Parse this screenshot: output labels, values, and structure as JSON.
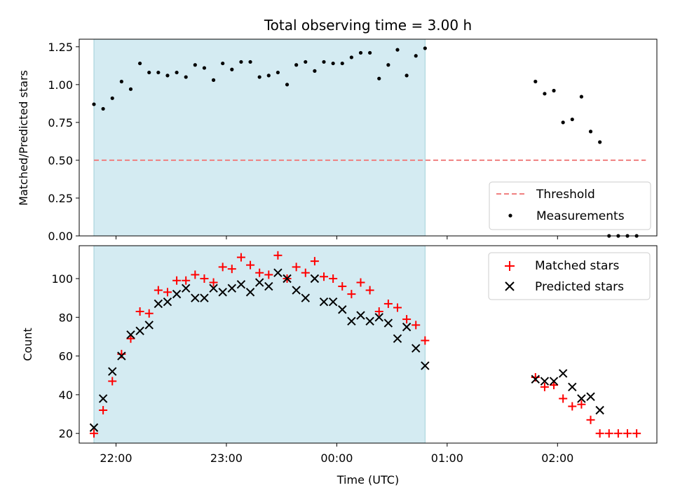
{
  "chart_data": [
    {
      "type": "scatter",
      "title": "Total observing time = 3.00 h",
      "ylabel": "Matched/Predicted stars",
      "xlim": [
        "21:40",
        "02:54"
      ],
      "ylim": [
        0,
        1.3
      ],
      "yticks": [
        "0.00",
        "0.25",
        "0.50",
        "0.75",
        "1.00",
        "1.25"
      ],
      "shaded_region": [
        "21:48",
        "00:48"
      ],
      "grid": false,
      "legend_position": "lower-right",
      "series": [
        {
          "name": "Threshold",
          "style": "dashed-line",
          "color": "#f08080",
          "x": [
            "21:48",
            "02:48"
          ],
          "y": [
            0.5,
            0.5
          ]
        },
        {
          "name": "Measurements",
          "style": "dot",
          "color": "#000000",
          "x": [
            "21:48",
            "21:53",
            "21:58",
            "22:03",
            "22:08",
            "22:13",
            "22:18",
            "22:23",
            "22:28",
            "22:33",
            "22:38",
            "22:43",
            "22:48",
            "22:53",
            "22:58",
            "23:03",
            "23:08",
            "23:13",
            "23:18",
            "23:23",
            "23:28",
            "23:33",
            "23:38",
            "23:43",
            "23:48",
            "23:53",
            "23:58",
            "00:03",
            "00:08",
            "00:13",
            "00:18",
            "00:23",
            "00:28",
            "00:33",
            "00:38",
            "00:43",
            "00:48",
            "01:48",
            "01:53",
            "01:58",
            "02:03",
            "02:08",
            "02:13",
            "02:18",
            "02:23",
            "02:28",
            "02:33",
            "02:38",
            "02:43"
          ],
          "y": [
            0.87,
            0.84,
            0.91,
            1.02,
            0.97,
            1.14,
            1.08,
            1.08,
            1.06,
            1.08,
            1.05,
            1.13,
            1.11,
            1.03,
            1.14,
            1.1,
            1.15,
            1.15,
            1.05,
            1.06,
            1.08,
            1.0,
            1.13,
            1.15,
            1.09,
            1.15,
            1.14,
            1.14,
            1.18,
            1.21,
            1.21,
            1.04,
            1.13,
            1.23,
            1.06,
            1.19,
            1.24,
            1.02,
            0.94,
            0.96,
            0.75,
            0.77,
            0.92,
            0.69,
            0.62,
            0.0,
            0.0,
            0.0,
            0.0
          ]
        }
      ]
    },
    {
      "type": "scatter",
      "xlabel": "Time (UTC)",
      "ylabel": "Count",
      "xlim": [
        "21:40",
        "02:54"
      ],
      "ylim": [
        15,
        117
      ],
      "yticks": [
        "20",
        "40",
        "60",
        "80",
        "100"
      ],
      "xticks": [
        "22:00",
        "23:00",
        "00:00",
        "01:00",
        "02:00"
      ],
      "shaded_region": [
        "21:48",
        "00:48"
      ],
      "grid": false,
      "legend_position": "upper-right",
      "series": [
        {
          "name": "Matched stars",
          "style": "plus",
          "color": "#ff0000",
          "x": [
            "21:48",
            "21:53",
            "21:58",
            "22:03",
            "22:08",
            "22:13",
            "22:18",
            "22:23",
            "22:28",
            "22:33",
            "22:38",
            "22:43",
            "22:48",
            "22:53",
            "22:58",
            "23:03",
            "23:08",
            "23:13",
            "23:18",
            "23:23",
            "23:28",
            "23:33",
            "23:38",
            "23:43",
            "23:48",
            "23:53",
            "23:58",
            "00:03",
            "00:08",
            "00:13",
            "00:18",
            "00:23",
            "00:28",
            "00:33",
            "00:38",
            "00:43",
            "00:48",
            "01:48",
            "01:53",
            "01:58",
            "02:03",
            "02:08",
            "02:13",
            "02:18",
            "02:23",
            "02:28",
            "02:33",
            "02:38",
            "02:43"
          ],
          "y": [
            20,
            32,
            47,
            61,
            69,
            83,
            82,
            94,
            93,
            99,
            99,
            102,
            100,
            98,
            106,
            105,
            111,
            107,
            103,
            102,
            112,
            100,
            106,
            103,
            109,
            101,
            100,
            96,
            92,
            98,
            94,
            83,
            87,
            85,
            79,
            76,
            68,
            49,
            44,
            45,
            38,
            34,
            35,
            27,
            20,
            20,
            20,
            20,
            20
          ]
        },
        {
          "name": "Predicted stars",
          "style": "cross",
          "color": "#000000",
          "x": [
            "21:48",
            "21:53",
            "21:58",
            "22:03",
            "22:08",
            "22:13",
            "22:18",
            "22:23",
            "22:28",
            "22:33",
            "22:38",
            "22:43",
            "22:48",
            "22:53",
            "22:58",
            "23:03",
            "23:08",
            "23:13",
            "23:18",
            "23:23",
            "23:28",
            "23:33",
            "23:38",
            "23:43",
            "23:48",
            "23:53",
            "23:58",
            "00:03",
            "00:08",
            "00:13",
            "00:18",
            "00:23",
            "00:28",
            "00:33",
            "00:38",
            "00:43",
            "00:48",
            "01:48",
            "01:53",
            "01:58",
            "02:03",
            "02:08",
            "02:13",
            "02:18",
            "02:23"
          ],
          "y": [
            23,
            38,
            52,
            60,
            71,
            73,
            76,
            87,
            88,
            92,
            95,
            90,
            90,
            95,
            93,
            95,
            97,
            93,
            98,
            96,
            103,
            100,
            94,
            90,
            100,
            88,
            88,
            84,
            78,
            81,
            78,
            80,
            77,
            69,
            75,
            64,
            55,
            48,
            47,
            47,
            51,
            44,
            38,
            39,
            32
          ]
        }
      ]
    }
  ]
}
